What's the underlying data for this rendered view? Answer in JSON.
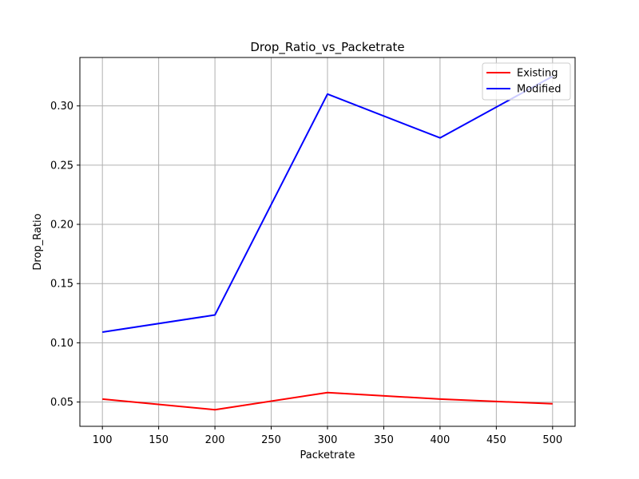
{
  "chart_data": {
    "type": "line",
    "title": "Drop_Ratio_vs_Packetrate",
    "xlabel": "Packetrate",
    "ylabel": "Drop_Ratio",
    "x": [
      100,
      200,
      300,
      400,
      500
    ],
    "xlim": [
      80,
      520
    ],
    "ylim": [
      0.0295,
      0.3409
    ],
    "xticks": [
      100,
      150,
      200,
      250,
      300,
      350,
      400,
      450,
      500
    ],
    "xtick_labels": [
      "100",
      "150",
      "200",
      "250",
      "300",
      "350",
      "400",
      "450",
      "500"
    ],
    "yticks": [
      0.05,
      0.1,
      0.15,
      0.2,
      0.25,
      0.3
    ],
    "ytick_labels": [
      "0.05",
      "0.10",
      "0.15",
      "0.20",
      "0.25",
      "0.30"
    ],
    "grid": true,
    "legend_position": "upper right",
    "series": [
      {
        "name": "Existing",
        "color": "#ff0000",
        "values": [
          0.0525,
          0.0435,
          0.058,
          0.0525,
          0.0485
        ]
      },
      {
        "name": "Modified",
        "color": "#0000ff",
        "values": [
          0.109,
          0.1235,
          0.31,
          0.273,
          0.325
        ]
      }
    ]
  }
}
